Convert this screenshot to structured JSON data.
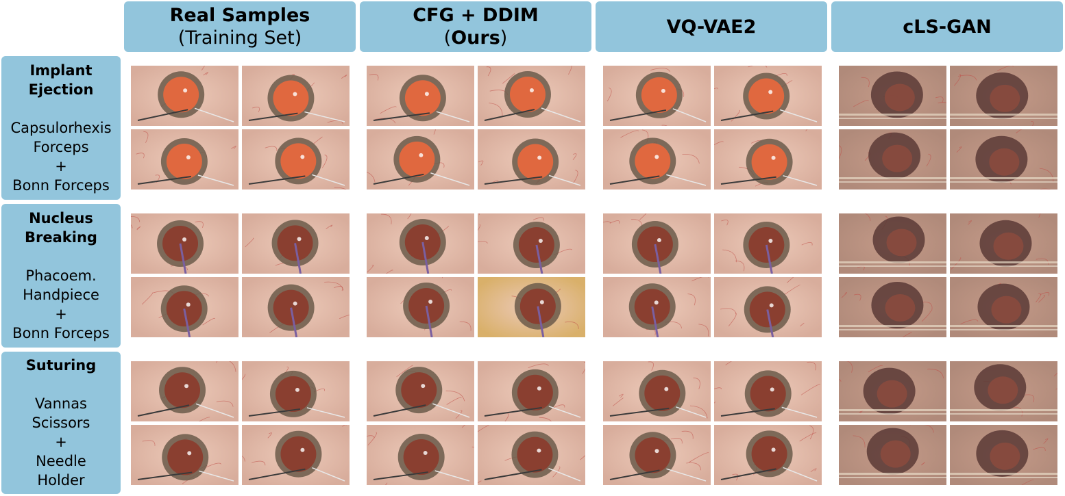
{
  "columns": [
    {
      "line1": "Real Samples",
      "line2": "(Training Set)",
      "line2_bold": "",
      "line2_tail": ""
    },
    {
      "line1": "CFG + DDIM",
      "line2": "(",
      "line2_bold": "Ours",
      "line2_tail": ")"
    },
    {
      "line1": "VQ-VAE2",
      "line2": "",
      "line2_bold": "",
      "line2_tail": ""
    },
    {
      "line1": "cLS-GAN",
      "line2": "",
      "line2_bold": "",
      "line2_tail": ""
    }
  ],
  "rows": [
    {
      "stage_lines": [
        "Implant",
        "Ejection"
      ],
      "tool_lines": [
        "Capsulorhexis",
        "Forceps",
        "+",
        "Bonn Forceps"
      ]
    },
    {
      "stage_lines": [
        "Nucleus",
        "Breaking"
      ],
      "tool_lines": [
        "Phacoem.",
        "Handpiece",
        "+",
        "Bonn Forceps"
      ]
    },
    {
      "stage_lines": [
        "Suturing"
      ],
      "tool_lines": [
        "Vannas",
        "Scissors",
        "+",
        "Needle",
        "Holder"
      ]
    }
  ],
  "colors": {
    "label_background": "#92c5dc",
    "sclera": "#d9b3a3",
    "iris": "#6b5a4a",
    "pupil_red_reflex": "#e06b4a",
    "gan_texture": "#9a7468"
  },
  "image_description_icons": [
    "eye-surgery-frame"
  ]
}
